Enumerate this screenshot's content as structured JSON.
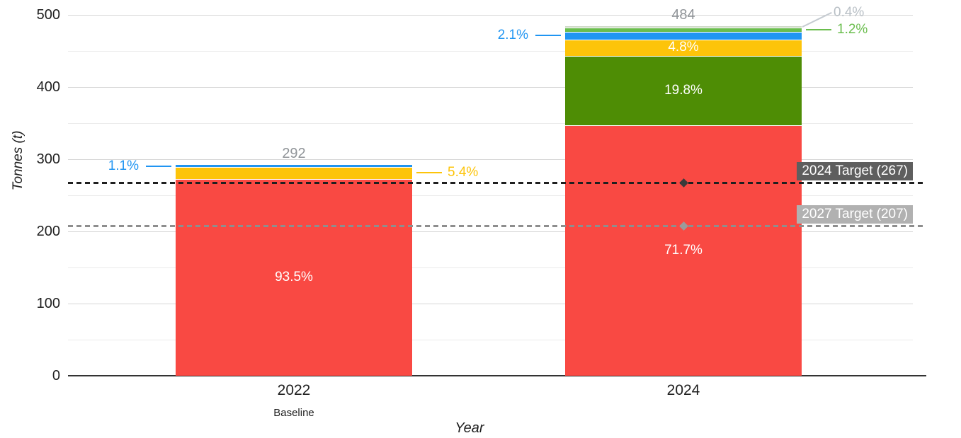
{
  "chart_data": {
    "type": "bar",
    "stacked": true,
    "title": "",
    "xlabel": "Year",
    "ylabel": "Tonnes (t)",
    "ylim": [
      0,
      500
    ],
    "y_major_ticks": [
      0,
      100,
      200,
      300,
      400,
      500
    ],
    "y_minor_ticks": [
      50,
      150,
      250,
      350,
      450
    ],
    "grid": true,
    "legend": "none",
    "categories": [
      {
        "label": "2022",
        "sublabel": "Baseline",
        "total": 292,
        "total_label": "292",
        "segments": [
          {
            "color_name": "red",
            "pct": 93.5,
            "color": "#f94943",
            "label": "93.5%",
            "placement": "inside"
          },
          {
            "color_name": "yellow",
            "pct": 5.4,
            "color": "#fdc40a",
            "label": "5.4%",
            "placement": "leader-right"
          },
          {
            "color_name": "blue",
            "pct": 1.1,
            "color": "#2095f2",
            "label": "1.1%",
            "placement": "leader-left"
          }
        ]
      },
      {
        "label": "2024",
        "sublabel": "",
        "total": 484,
        "total_label": "484",
        "segments": [
          {
            "color_name": "red",
            "pct": 71.7,
            "color": "#f94943",
            "label": "71.7%",
            "placement": "inside"
          },
          {
            "color_name": "dark-green",
            "pct": 19.8,
            "color": "#4e8d05",
            "label": "19.8%",
            "placement": "inside"
          },
          {
            "color_name": "yellow",
            "pct": 4.8,
            "color": "#fdc40a",
            "label": "4.8%",
            "placement": "inside"
          },
          {
            "color_name": "blue",
            "pct": 2.1,
            "color": "#2095f2",
            "label": "2.1%",
            "placement": "leader-left"
          },
          {
            "color_name": "light-green",
            "pct": 1.2,
            "color": "#6abd4d",
            "label": "1.2%",
            "placement": "leader-right"
          },
          {
            "color_name": "pale-green",
            "pct": 0.4,
            "color": "#cdd9c5",
            "label": "0.4%",
            "placement": "leader-right-diagonal",
            "label_color": "#b9c0c6",
            "leader_color": "#c5cbd1"
          }
        ]
      }
    ],
    "target_lines": [
      {
        "label": "2024 Target (267)",
        "value": 267,
        "line_color": "#1f1f1f",
        "box_color": "#5e5e5e",
        "text_color": "#ffffff",
        "marker": "diamond",
        "marker_color": "#3a3a3a",
        "marker_category": "2024"
      },
      {
        "label": "2027 Target (207)",
        "value": 207,
        "line_color": "#8e8e8e",
        "box_color": "#b1b1b1",
        "text_color": "#ffffff",
        "marker": "diamond",
        "marker_color": "#9b9b9b",
        "marker_category": "2024"
      }
    ],
    "colors": {
      "total_label": "#909498",
      "axis_text": "#1f1f1f",
      "axis_line": "#333333",
      "grid_major": "#d6d6d6",
      "grid_minor": "#ebebeb",
      "inside_label": "#ffffff"
    }
  }
}
